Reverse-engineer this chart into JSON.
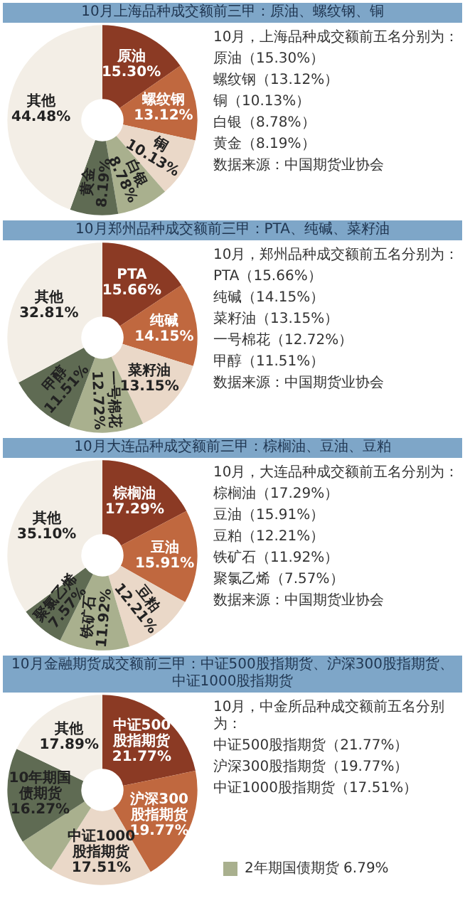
{
  "chart_data": [
    {
      "type": "donut",
      "title": "10月上海品种成交额前三甲：原油、螺纹钢、铜",
      "categories": [
        "原油",
        "螺纹钢",
        "铜",
        "白银",
        "黄金",
        "其他"
      ],
      "values": [
        15.3,
        13.12,
        10.13,
        8.78,
        8.19,
        44.48
      ],
      "value_labels": [
        "15.30%",
        "13.12%",
        "10.13%",
        "8.78%",
        "8.19%",
        "44.48%"
      ],
      "colors": [
        "#8b3a24",
        "#c0683f",
        "#ead8c8",
        "#a9b08e",
        "#5f6b53",
        "#f3eee6"
      ],
      "annotations": [
        "10月，上海品种成交额前五名分别为：",
        "原油（15.30%）",
        "螺纹钢（13.12%）",
        "铜（10.13%）",
        "白银（8.78%）",
        "黄金（8.19%）",
        "数据来源：中国期货业协会"
      ]
    },
    {
      "type": "donut",
      "title": "10月郑州品种成交额前三甲：PTA、纯碱、菜籽油",
      "categories": [
        "PTA",
        "纯碱",
        "菜籽油",
        "一号棉花",
        "甲醇",
        "其他"
      ],
      "values": [
        15.66,
        14.15,
        13.15,
        12.72,
        11.51,
        32.81
      ],
      "value_labels": [
        "15.66%",
        "14.15%",
        "13.15%",
        "12.72%",
        "11.51%",
        "32.81%"
      ],
      "colors": [
        "#8b3a24",
        "#c0683f",
        "#ead8c8",
        "#a9b08e",
        "#5f6b53",
        "#f3eee6"
      ],
      "annotations": [
        "10月，郑州品种成交额前五名分别为：",
        "PTA（15.66%）",
        "纯碱（14.15%）",
        "菜籽油（13.15%）",
        "一号棉花（12.72%）",
        "甲醇（11.51%）",
        "数据来源：中国期货业协会"
      ]
    },
    {
      "type": "donut",
      "title": "10月大连品种成交额前三甲：棕榈油、豆油、豆粕",
      "categories": [
        "棕榈油",
        "豆油",
        "豆粕",
        "铁矿石",
        "聚氯乙烯",
        "其他"
      ],
      "values": [
        17.29,
        15.91,
        12.21,
        11.92,
        7.57,
        35.1
      ],
      "value_labels": [
        "17.29%",
        "15.91%",
        "12.21%",
        "11.92%",
        "7.57%",
        "35.10%"
      ],
      "colors": [
        "#8b3a24",
        "#c0683f",
        "#ead8c8",
        "#a9b08e",
        "#5f6b53",
        "#f3eee6"
      ],
      "annotations": [
        "10月，大连品种成交额前五名分别为：",
        "棕榈油（17.29%）",
        "豆油（15.91%）",
        "豆粕（12.21%）",
        "铁矿石（11.92%）",
        "聚氯乙烯（7.57%）",
        "数据来源：中国期货业协会"
      ]
    },
    {
      "type": "donut",
      "title": "10月金融期货成交额前三甲：中证500股指期货、沪深300股指期货、中证1000股指期货",
      "categories": [
        "中证500股指期货",
        "沪深300股指期货",
        "中证1000股指期货",
        "2年期国债期货",
        "10年期国债期货",
        "其他"
      ],
      "values": [
        21.77,
        19.77,
        17.51,
        6.79,
        16.27,
        17.89
      ],
      "value_labels": [
        "21.77%",
        "19.77%",
        "17.51%",
        "6.79%",
        "16.27%",
        "17.89%"
      ],
      "colors": [
        "#8b3a24",
        "#c0683f",
        "#ead8c8",
        "#a9b08e",
        "#5f6b53",
        "#f3eee6"
      ],
      "annotations": [
        "10月，中金所品种成交额前五名分别为：",
        "中证500股指期货（21.77%）",
        "沪深300股指期货（19.77%）",
        "中证1000股指期货（17.51%）"
      ]
    }
  ]
}
